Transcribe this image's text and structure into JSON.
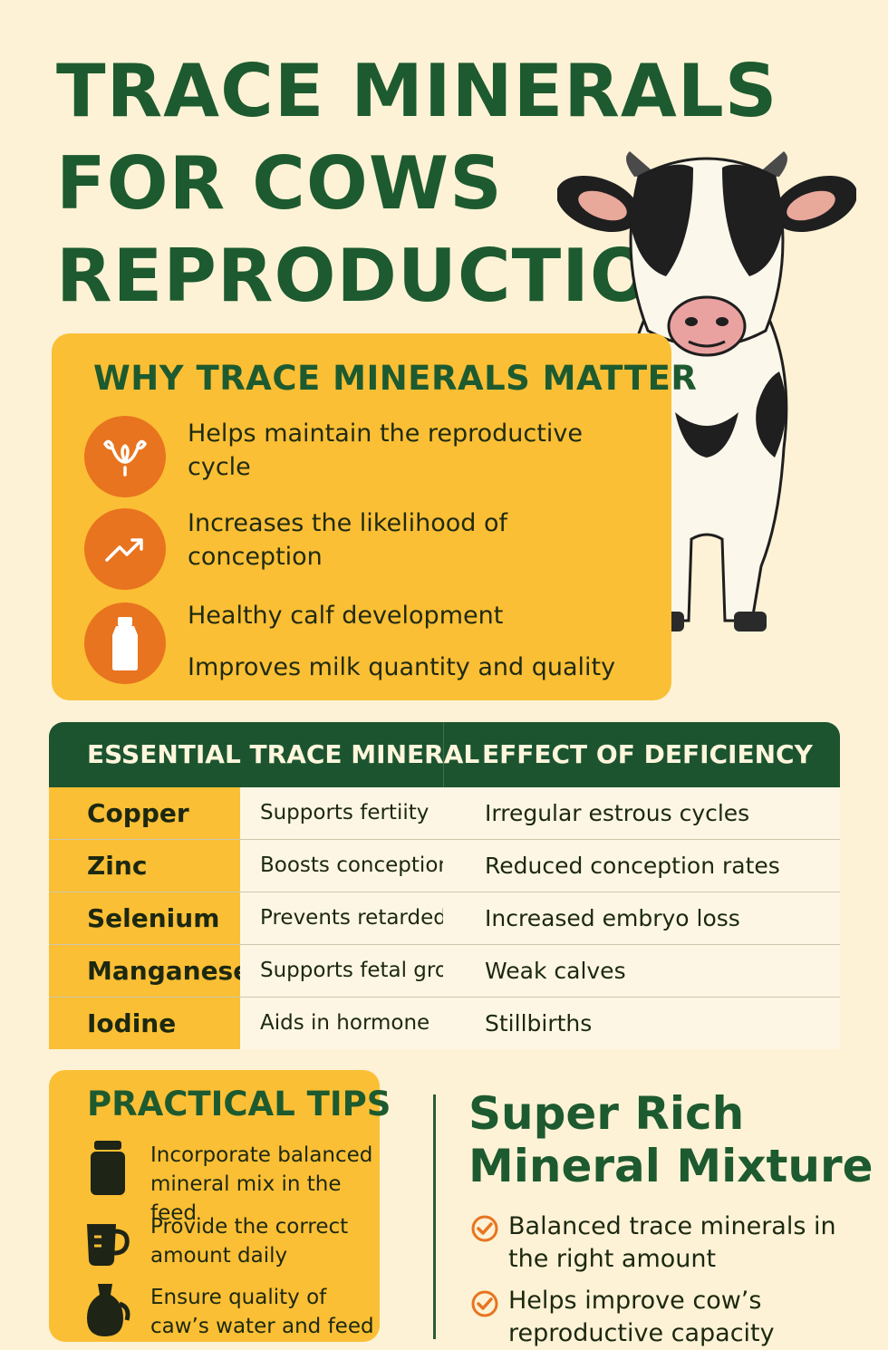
{
  "header": {
    "title_lines": [
      "TRACE MINERALS",
      "FOR COWS",
      "REPRODUCTION"
    ]
  },
  "why": {
    "heading": "WHY TRACE MINERALS MATTER",
    "items": [
      {
        "icon": "uterus-icon",
        "text": "Helps maintain the reproductive cycle"
      },
      {
        "icon": "trend-up-icon",
        "text": "Increases the likelihood of conception"
      },
      {
        "icon": "milk-bottle-icon",
        "text": "Healthy calf development"
      },
      {
        "text": "Improves milk quantity and quality"
      }
    ]
  },
  "table": {
    "headers": [
      "ESSENTIAL TRACE MINERAL",
      "EFFECT OF DEFICIENCY"
    ],
    "rows": [
      {
        "mineral": "Copper",
        "role": "Supports fertiity",
        "deficiency": "Irregular estrous cycles"
      },
      {
        "mineral": "Zinc",
        "role": "Boosts conception",
        "deficiency": "Reduced conception rates"
      },
      {
        "mineral": "Selenium",
        "role": "Prevents retarded",
        "deficiency": "Increased embryo loss"
      },
      {
        "mineral": "Manganese",
        "role": "Supports fetal growth",
        "deficiency": "Weak calves"
      },
      {
        "mineral": "Iodine",
        "role": "Aids in hormone",
        "deficiency": "Stillbirths"
      }
    ]
  },
  "tips": {
    "heading": "PRACTICAL TIPS",
    "items": [
      {
        "icon": "jar-icon",
        "text": "Incorporate balanced mineral mix in the feed"
      },
      {
        "icon": "measuring-cup-icon",
        "text": "Provide the correct amount daily"
      },
      {
        "icon": "jug-icon",
        "text": "Ensure quality of caw’s water and feed"
      }
    ]
  },
  "product": {
    "name_lines": [
      "Super Rich",
      "Mineral Mixture"
    ],
    "points": [
      "Balanced trace minerals in the right amount",
      "Helps improve cow’s reproductive capacity"
    ]
  },
  "colors": {
    "background": "#fdf2d6",
    "green": "#1d5a2f",
    "yellow": "#fbbf35",
    "orange": "#e8741f"
  }
}
